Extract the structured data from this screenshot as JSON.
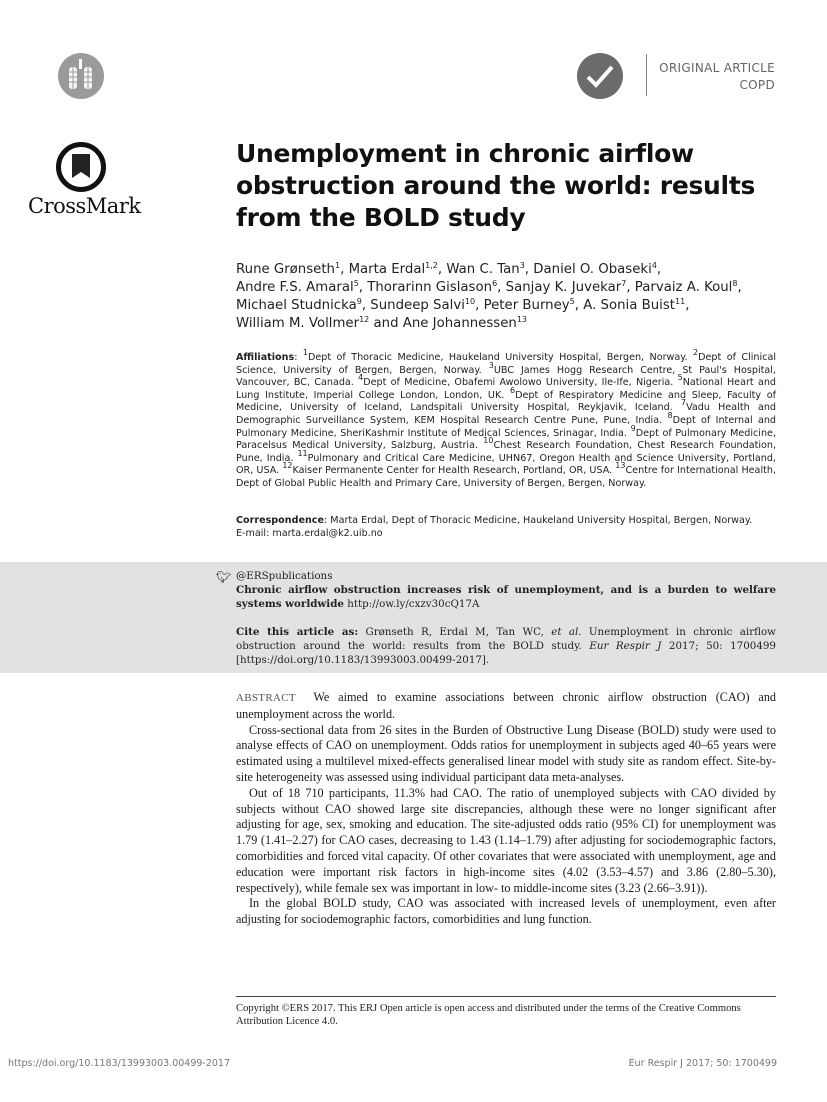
{
  "header": {
    "article_type": "ORIGINAL ARTICLE",
    "category": "COPD",
    "crossmark_label": "CrossMark"
  },
  "title": "Unemployment in chronic airflow obstruction around the world: results from the BOLD study",
  "authors": [
    {
      "name": "Rune Grønseth",
      "sup": "1",
      "sep": ", "
    },
    {
      "name": "Marta Erdal",
      "sup": "1,2",
      "sep": ", "
    },
    {
      "name": "Wan C. Tan",
      "sup": "3",
      "sep": ", "
    },
    {
      "name": "Daniel O. Obaseki",
      "sup": "4",
      "sep": ", "
    },
    {
      "name": "Andre F.S. Amaral",
      "sup": "5",
      "sep": ", "
    },
    {
      "name": "Thorarinn Gislason",
      "sup": "6",
      "sep": ", "
    },
    {
      "name": "Sanjay K. Juvekar",
      "sup": "7",
      "sep": ", "
    },
    {
      "name": "Parvaiz A. Koul",
      "sup": "8",
      "sep": ", "
    },
    {
      "name": "Michael Studnicka",
      "sup": "9",
      "sep": ", "
    },
    {
      "name": "Sundeep Salvi",
      "sup": "10",
      "sep": ", "
    },
    {
      "name": "Peter Burney",
      "sup": "5",
      "sep": ", "
    },
    {
      "name": "A. Sonia Buist",
      "sup": "11",
      "sep": ", "
    },
    {
      "name": "William M. Vollmer",
      "sup": "12",
      "sep": " and "
    },
    {
      "name": "Ane Johannessen",
      "sup": "13",
      "sep": ""
    }
  ],
  "affiliations": {
    "label": "Affiliations",
    "items": [
      {
        "n": "1",
        "text": "Dept of Thoracic Medicine, Haukeland University Hospital, Bergen, Norway. "
      },
      {
        "n": "2",
        "text": "Dept of Clinical Science, University of Bergen, Bergen, Norway. "
      },
      {
        "n": "3",
        "text": "UBC James Hogg Research Centre, St Paul's Hospital, Vancouver, BC, Canada. "
      },
      {
        "n": "4",
        "text": "Dept of Medicine, Obafemi Awolowo University, Ile-Ife, Nigeria. "
      },
      {
        "n": "5",
        "text": "National Heart and Lung Institute, Imperial College London, London, UK. "
      },
      {
        "n": "6",
        "text": "Dept of Respiratory Medicine and Sleep, Faculty of Medicine, University of Iceland, Landspitali University Hospital, Reykjavik, Iceland. "
      },
      {
        "n": "7",
        "text": "Vadu Health and Demographic Surveillance System, KEM Hospital Research Centre Pune, Pune, India. "
      },
      {
        "n": "8",
        "text": "Dept of Internal and Pulmonary Medicine, SheriKashmir Institute of Medical Sciences, Srinagar, India. "
      },
      {
        "n": "9",
        "text": "Dept of Pulmonary Medicine, Paracelsus Medical University, Salzburg, Austria. "
      },
      {
        "n": "10",
        "text": "Chest Research Foundation, Chest Research Foundation, Pune, India. "
      },
      {
        "n": "11",
        "text": "Pulmonary and Critical Care Medicine, UHN67, Oregon Health and Science University, Portland, OR, USA. "
      },
      {
        "n": "12",
        "text": "Kaiser Permanente Center for Health Research, Portland, OR, USA. "
      },
      {
        "n": "13",
        "text": "Centre for International Health, Dept of Global Public Health and Primary Care, University of Bergen, Bergen, Norway."
      }
    ]
  },
  "correspondence": {
    "label": "Correspondence",
    "text": "Marta Erdal, Dept of Thoracic Medicine, Haukeland University Hospital, Bergen, Norway.",
    "email": "E-mail: marta.erdal@k2.uib.no"
  },
  "tweet": {
    "handle": "@ERSpublications",
    "text": "Chronic airflow obstruction increases risk of unemployment, and is a burden to welfare systems worldwide",
    "link": "http://ow.ly/cxzv30cQ17A"
  },
  "cite": {
    "label": "Cite this article as:",
    "authors": "Grønseth R, Erdal M, Tan WC, ",
    "etal": "et al",
    "title": ". Unemployment in chronic airflow obstruction around the world: results from the BOLD study. ",
    "journal": "Eur Respir J",
    "rest": " 2017; 50: 1700499 [https://doi.org/10.1183/13993003.00499-2017]."
  },
  "abstract": {
    "label": "ABSTRACT",
    "paragraphs": [
      "We aimed to examine associations between chronic airflow obstruction (CAO) and unemployment across the world.",
      "Cross-sectional data from 26 sites in the Burden of Obstructive Lung Disease (BOLD) study were used to analyse effects of CAO on unemployment. Odds ratios for unemployment in subjects aged 40–65 years were estimated using a multilevel mixed-effects generalised linear model with study site as random effect. Site-by-site heterogeneity was assessed using individual participant data meta-analyses.",
      "Out of 18 710 participants, 11.3% had CAO. The ratio of unemployed subjects with CAO divided by subjects without CAO showed large site discrepancies, although these were no longer significant after adjusting for age, sex, smoking and education. The site-adjusted odds ratio (95% CI) for unemployment was 1.79 (1.41–2.27) for CAO cases, decreasing to 1.43 (1.14–1.79) after adjusting for sociodemographic factors, comorbidities and forced vital capacity. Of other covariates that were associated with unemployment, age and education were important risk factors in high-income sites (4.02 (3.53–4.57) and 3.86 (2.80–5.30), respectively), while female sex was important in low- to middle-income sites (3.23 (2.66–3.91)).",
      "In the global BOLD study, CAO was associated with increased levels of unemployment, even after adjusting for sociodemographic factors, comorbidities and lung function."
    ]
  },
  "copyright": "Copyright ©ERS 2017. This ERJ Open article is open access and distributed under the terms of the Creative Commons Attribution Licence 4.0.",
  "footer": {
    "doi": "https://doi.org/10.1183/13993003.00499-2017",
    "journal": "Eur Respir J 2017; 50: 1700499"
  }
}
